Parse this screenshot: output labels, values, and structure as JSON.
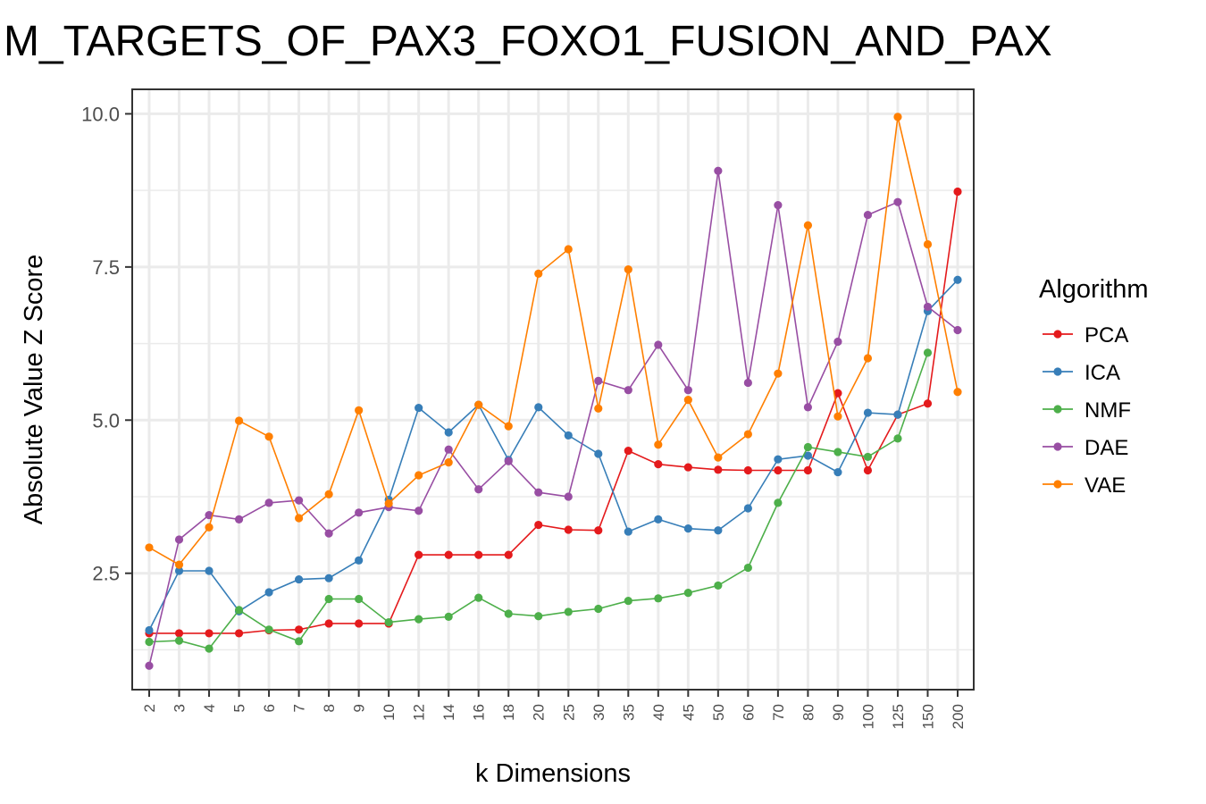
{
  "chart_data": {
    "type": "line",
    "title": "M_TARGETS_OF_PAX3_FOXO1_FUSION_AND_PAX",
    "xlabel": "k Dimensions",
    "ylabel": "Absolute Value Z Score",
    "categories": [
      "2",
      "3",
      "4",
      "5",
      "6",
      "7",
      "8",
      "9",
      "10",
      "12",
      "14",
      "16",
      "18",
      "20",
      "25",
      "30",
      "35",
      "40",
      "45",
      "50",
      "60",
      "70",
      "80",
      "90",
      "100",
      "125",
      "150",
      "200"
    ],
    "y_ticks": [
      "2.5",
      "5.0",
      "7.5",
      "10.0"
    ],
    "ylim": [
      0.6,
      10.4
    ],
    "grid": true,
    "legend": {
      "title": "Algorithm",
      "position": "right"
    },
    "series": [
      {
        "name": "PCA",
        "color": "#e41a1c",
        "values": [
          1.52,
          1.52,
          1.52,
          1.52,
          1.57,
          1.58,
          1.68,
          1.68,
          1.68,
          2.8,
          2.8,
          2.8,
          2.8,
          3.29,
          3.21,
          3.2,
          4.5,
          4.28,
          4.23,
          4.19,
          4.18,
          4.18,
          4.18,
          5.44,
          4.18,
          5.09,
          5.27,
          8.73
        ]
      },
      {
        "name": "ICA",
        "color": "#377eb8",
        "values": [
          1.57,
          2.54,
          2.54,
          1.88,
          2.19,
          2.4,
          2.42,
          2.71,
          3.7,
          5.2,
          4.8,
          5.25,
          4.35,
          5.21,
          4.75,
          4.45,
          3.18,
          3.38,
          3.23,
          3.2,
          3.56,
          4.36,
          4.42,
          4.15,
          5.12,
          5.09,
          6.78,
          7.29
        ]
      },
      {
        "name": "NMF",
        "color": "#4daf4a",
        "values": [
          1.38,
          1.4,
          1.27,
          1.9,
          1.58,
          1.39,
          2.08,
          2.08,
          1.7,
          1.75,
          1.79,
          2.1,
          1.84,
          1.8,
          1.87,
          1.92,
          2.05,
          2.09,
          2.18,
          2.3,
          2.59,
          3.65,
          4.56,
          4.48,
          4.4,
          4.7,
          6.1,
          null
        ]
      },
      {
        "name": "DAE",
        "color": "#984ea3",
        "values": [
          0.99,
          3.05,
          3.45,
          3.38,
          3.65,
          3.69,
          3.15,
          3.49,
          3.58,
          3.52,
          4.52,
          3.87,
          4.33,
          3.82,
          3.75,
          5.64,
          5.49,
          6.23,
          5.49,
          9.07,
          5.61,
          8.51,
          5.21,
          6.28,
          8.35,
          8.56,
          6.85,
          6.47
        ]
      },
      {
        "name": "VAE",
        "color": "#ff7f00",
        "values": [
          2.92,
          2.64,
          3.25,
          4.99,
          4.73,
          3.4,
          3.79,
          5.16,
          3.64,
          4.1,
          4.31,
          5.25,
          4.9,
          7.39,
          7.79,
          5.19,
          7.46,
          4.6,
          5.33,
          4.39,
          4.77,
          5.76,
          8.18,
          5.06,
          6.01,
          9.95,
          7.87,
          5.46
        ]
      }
    ]
  }
}
